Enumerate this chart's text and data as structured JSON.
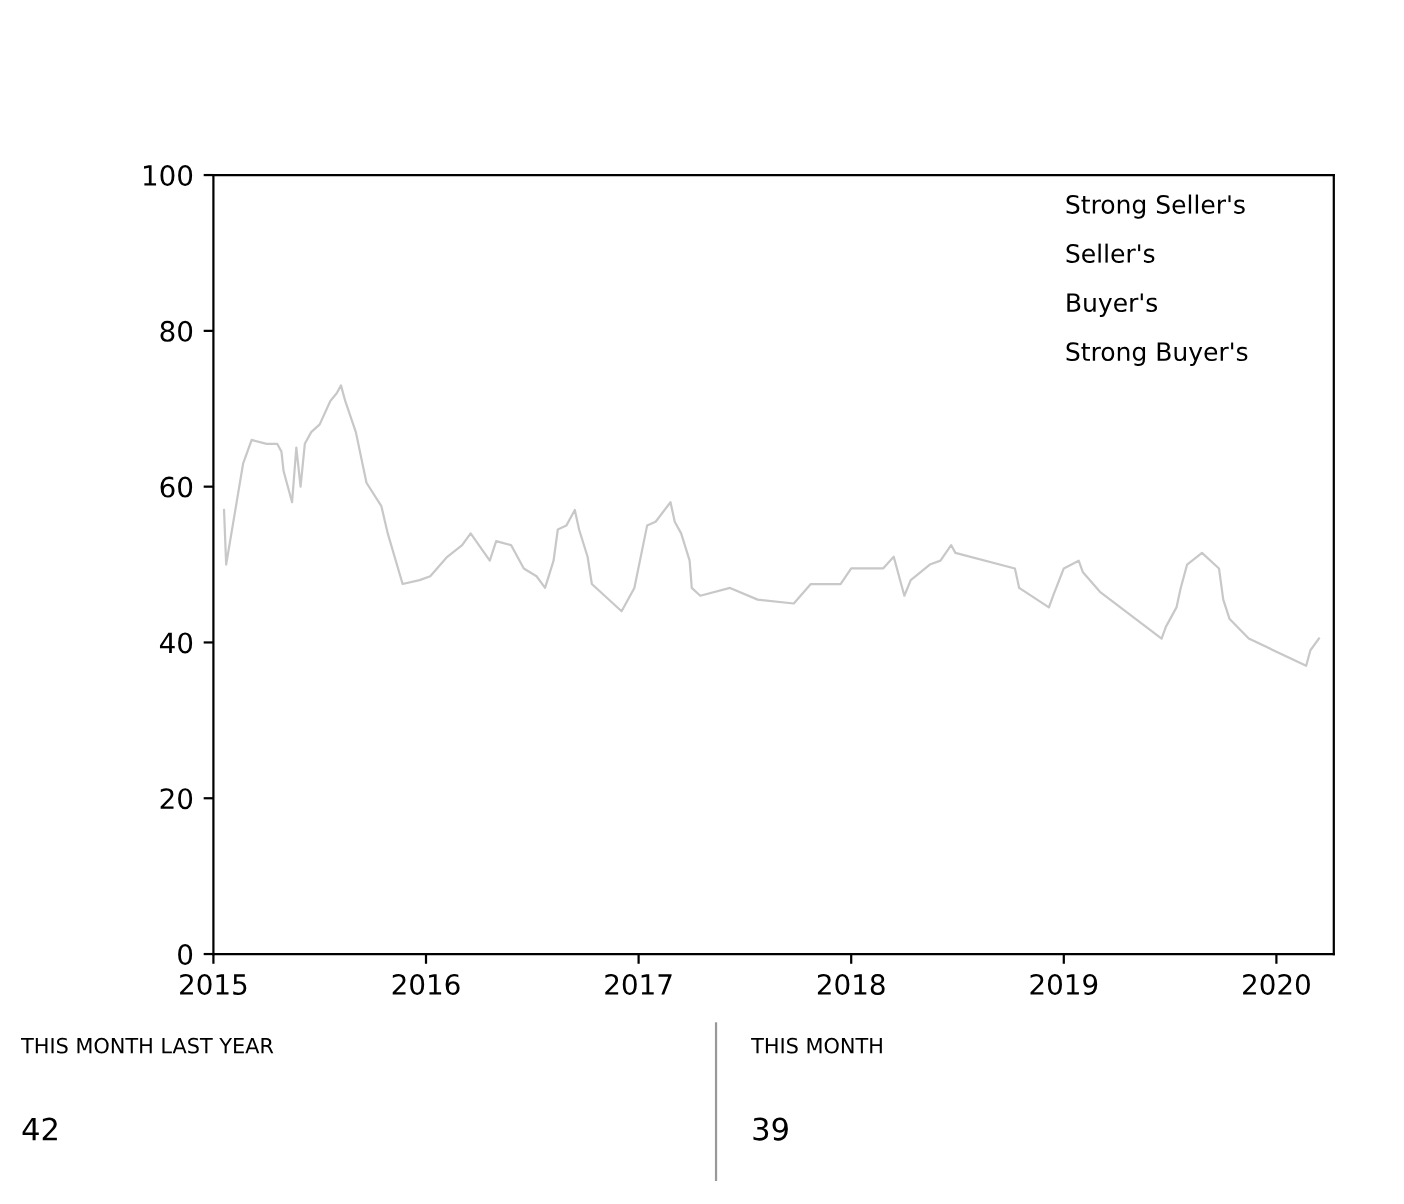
{
  "chart_data": {
    "type": "line",
    "x": [
      2015.05,
      2015.06,
      2015.14,
      2015.18,
      2015.25,
      2015.3,
      2015.32,
      2015.33,
      2015.37,
      2015.39,
      2015.41,
      2015.43,
      2015.46,
      2015.5,
      2015.55,
      2015.58,
      2015.6,
      2015.62,
      2015.67,
      2015.72,
      2015.79,
      2015.82,
      2015.89,
      2015.97,
      2016.02,
      2016.1,
      2016.17,
      2016.21,
      2016.3,
      2016.33,
      2016.4,
      2016.46,
      2016.52,
      2016.56,
      2016.6,
      2016.62,
      2016.66,
      2016.7,
      2016.72,
      2016.76,
      2016.78,
      2016.92,
      2016.98,
      2017.04,
      2017.08,
      2017.15,
      2017.17,
      2017.2,
      2017.24,
      2017.25,
      2017.29,
      2017.43,
      2017.56,
      2017.73,
      2017.81,
      2017.95,
      2018.0,
      2018.15,
      2018.2,
      2018.25,
      2018.28,
      2018.37,
      2018.42,
      2018.47,
      2018.49,
      2018.77,
      2018.79,
      2018.93,
      2018.95,
      2019.0,
      2019.07,
      2019.09,
      2019.17,
      2019.46,
      2019.48,
      2019.53,
      2019.55,
      2019.58,
      2019.65,
      2019.73,
      2019.75,
      2019.78,
      2019.87,
      2020.14,
      2020.16,
      2020.2
    ],
    "series": [
      {
        "color": "#c8c8c8",
        "values": [
          57,
          50,
          63,
          66,
          65.5,
          65.5,
          64.5,
          62,
          58,
          65,
          60,
          65.5,
          67,
          68,
          71,
          72,
          73,
          71,
          67,
          60.5,
          57.5,
          54,
          47.5,
          48,
          48.5,
          51,
          52.5,
          54,
          50.5,
          53,
          52.5,
          49.5,
          48.5,
          47,
          50.5,
          54.5,
          55,
          57,
          54.5,
          51,
          47.5,
          44,
          47,
          55,
          55.5,
          58,
          55.5,
          54,
          50.5,
          47,
          46,
          47,
          45.5,
          45,
          47.5,
          47.5,
          49.5,
          49.5,
          51,
          46,
          48,
          50,
          50.5,
          52.5,
          51.5,
          49.5,
          47,
          44.5,
          46,
          49.5,
          50.5,
          49,
          46.5,
          40.5,
          42,
          44.5,
          47,
          50,
          51.5,
          49.5,
          45.5,
          43,
          40.5,
          37,
          39,
          40.5
        ]
      }
    ],
    "xlim": [
      2015,
      2020.27
    ],
    "xticks": [
      2015,
      2016,
      2017,
      2018,
      2019,
      2020
    ],
    "ylim": [
      0,
      100
    ],
    "yticks": [
      0,
      20,
      40,
      60,
      80,
      100
    ],
    "annotations": [
      "Strong Seller's",
      "Seller's",
      "Buyer's",
      "Strong Buyer's",
      "THIS MONTH LAST YEAR",
      "42",
      "THIS MONTH",
      "39"
    ]
  }
}
